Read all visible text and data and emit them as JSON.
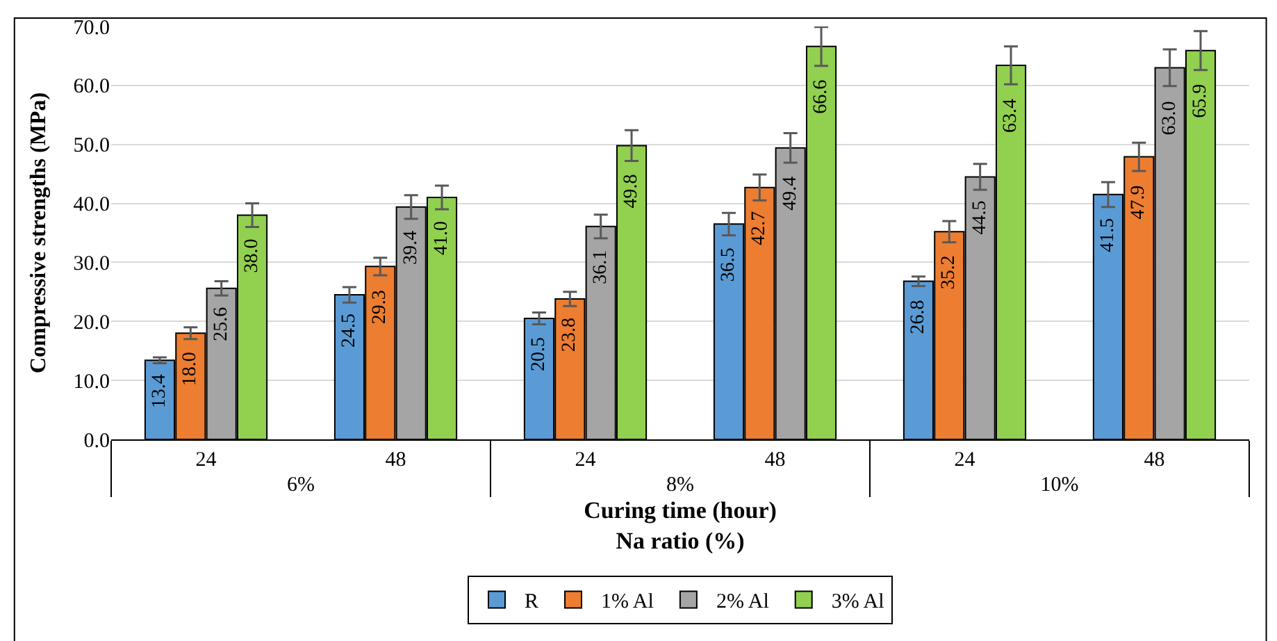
{
  "chart_data": {
    "type": "bar",
    "ylabel": "Compressive strengths (MPa)",
    "xlabel": "Curing time (hour)\nNa ratio (%)",
    "categories": [
      "24",
      "48",
      "24",
      "48",
      "24",
      "48"
    ],
    "annotations": [
      "6%",
      "8%",
      "10%"
    ],
    "series": [
      {
        "name": "R",
        "color": "#5b9bd5",
        "values": [
          13.4,
          24.5,
          20.5,
          36.5,
          26.8,
          41.5
        ],
        "errors": [
          0.5,
          1.3,
          1.0,
          1.9,
          0.8,
          2.1
        ],
        "value_labels": [
          "13.4",
          "24.5",
          "20.5",
          "36.5",
          "26.8",
          "41.5"
        ]
      },
      {
        "name": "1% Al",
        "color": "#ed7d31",
        "values": [
          18.0,
          29.3,
          23.8,
          42.7,
          35.2,
          47.9
        ],
        "errors": [
          1.0,
          1.5,
          1.2,
          2.2,
          1.8,
          2.4
        ],
        "value_labels": [
          "18.0",
          "29.3",
          "23.8",
          "42.7",
          "35.2",
          "47.9"
        ]
      },
      {
        "name": "2% Al",
        "color": "#a5a5a5",
        "values": [
          25.6,
          39.4,
          36.1,
          49.4,
          44.5,
          63.0
        ],
        "errors": [
          1.2,
          2.0,
          2.0,
          2.5,
          2.2,
          3.1
        ],
        "value_labels": [
          "25.6",
          "39.4",
          "36.1",
          "49.4",
          "44.5",
          "63.0"
        ]
      },
      {
        "name": "3% Al",
        "color": "#92d050",
        "values": [
          38.0,
          41.0,
          49.8,
          66.6,
          63.4,
          65.9
        ],
        "errors": [
          2.0,
          2.0,
          2.6,
          3.3,
          3.2,
          3.3
        ],
        "value_labels": [
          "38.0",
          "41.0",
          "49.8",
          "66.6",
          "63.4",
          "65.9"
        ]
      }
    ],
    "ylim": [
      0,
      70
    ],
    "yticks": [
      {
        "value": 0,
        "label": "0.0"
      },
      {
        "value": 10,
        "label": "10.0"
      },
      {
        "value": 20,
        "label": "20.0"
      },
      {
        "value": 30,
        "label": "30.0"
      },
      {
        "value": 40,
        "label": "40.0"
      },
      {
        "value": 50,
        "label": "50.0"
      },
      {
        "value": 60,
        "label": "60.0"
      },
      {
        "value": 70,
        "label": "70.0"
      }
    ],
    "grid": "y",
    "legend": "bottom"
  }
}
